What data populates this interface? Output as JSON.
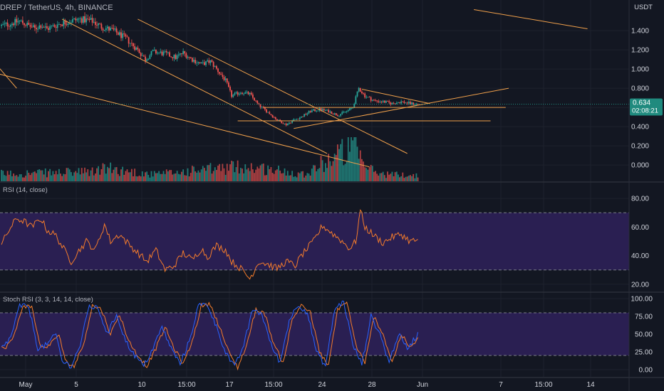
{
  "header": {
    "symbol_line": "DREP / TetherUS, 4h, BINANCE",
    "price_unit": "USDT",
    "last_price": "0.634",
    "countdown": "02:08:21"
  },
  "indicators": {
    "rsi_label": "RSI (14, close)",
    "stoch_label": "Stoch RSI (3, 3, 14, 14, close)"
  },
  "colors": {
    "background": "#131722",
    "up": "#26a69a",
    "down": "#ef5350",
    "trendline": "#f0a04b",
    "rsi_line": "#f57c2b",
    "rsi_band": "#2a1f52",
    "stoch_k": "#2962ff",
    "stoch_d": "#f57c2b",
    "price_tag": "#1f8a7e"
  },
  "chart_data": [
    {
      "type": "candlestick",
      "interval": "4h",
      "title": "DREP / TetherUS, 4h, BINANCE",
      "y_ticks": [
        0.0,
        0.2,
        0.4,
        0.6,
        0.8,
        1.0,
        1.2,
        1.4
      ],
      "y_tick_labels": [
        "0.000",
        "0.200",
        "0.400",
        "0.600",
        "0.800",
        "1.000",
        "1.200",
        "1.400"
      ],
      "x_tick_labels": [
        "May",
        "5",
        "10",
        "15:00",
        "17",
        "15:00",
        "24",
        "28",
        "Jun",
        "7",
        "15:00",
        "14"
      ],
      "last_price": 0.634,
      "price_keypoints": [
        [
          0,
          1.45
        ],
        [
          12,
          1.5
        ],
        [
          22,
          1.42
        ],
        [
          26,
          1.46
        ],
        [
          30,
          1.42
        ],
        [
          38,
          1.47
        ],
        [
          45,
          1.5
        ],
        [
          52,
          1.52
        ],
        [
          60,
          1.5
        ],
        [
          66,
          1.44
        ],
        [
          74,
          1.4
        ],
        [
          82,
          1.32
        ],
        [
          90,
          1.2
        ],
        [
          95,
          1.1
        ],
        [
          100,
          1.18
        ],
        [
          108,
          1.16
        ],
        [
          115,
          1.12
        ],
        [
          120,
          1.17
        ],
        [
          126,
          1.1
        ],
        [
          132,
          1.05
        ],
        [
          138,
          1.08
        ],
        [
          142,
          1.0
        ],
        [
          148,
          0.88
        ],
        [
          152,
          0.72
        ],
        [
          158,
          0.76
        ],
        [
          164,
          0.74
        ],
        [
          170,
          0.62
        ],
        [
          176,
          0.55
        ],
        [
          182,
          0.47
        ],
        [
          188,
          0.42
        ],
        [
          193,
          0.47
        ],
        [
          198,
          0.5
        ],
        [
          204,
          0.56
        ],
        [
          210,
          0.58
        ],
        [
          216,
          0.56
        ],
        [
          222,
          0.52
        ],
        [
          228,
          0.56
        ],
        [
          232,
          0.6
        ],
        [
          236,
          0.8
        ],
        [
          240,
          0.72
        ],
        [
          246,
          0.67
        ],
        [
          252,
          0.66
        ],
        [
          258,
          0.64
        ],
        [
          264,
          0.66
        ],
        [
          270,
          0.64
        ],
        [
          275,
          0.634
        ]
      ],
      "volume_keypoints": [
        [
          0,
          0.2
        ],
        [
          60,
          0.25
        ],
        [
          68,
          0.35
        ],
        [
          100,
          0.18
        ],
        [
          160,
          0.4
        ],
        [
          180,
          0.3
        ],
        [
          200,
          0.2
        ],
        [
          234,
          1.0
        ],
        [
          236,
          0.6
        ],
        [
          240,
          0.4
        ],
        [
          250,
          0.2
        ],
        [
          275,
          0.15
        ]
      ],
      "trendlines": [
        {
          "from": [
            -2,
            1.02
          ],
          "to": [
            10,
            0.8
          ]
        },
        {
          "from": [
            -2,
            0.95
          ],
          "to": [
            243,
            -0.02
          ]
        },
        {
          "from": [
            40,
            1.52
          ],
          "to": [
            215,
            0.12
          ]
        },
        {
          "from": [
            90,
            1.52
          ],
          "to": [
            268,
            0.12
          ]
        },
        {
          "from": [
            156,
            0.46
          ],
          "to": [
            323,
            0.46
          ]
        },
        {
          "from": [
            173,
            0.6
          ],
          "to": [
            333,
            0.6
          ]
        },
        {
          "from": [
            193,
            0.38
          ],
          "to": [
            335,
            0.8
          ]
        },
        {
          "from": [
            238,
            0.79
          ],
          "to": [
            283,
            0.64
          ]
        },
        {
          "from": [
            312,
            1.62
          ],
          "to": [
            387,
            1.42
          ]
        }
      ]
    },
    {
      "type": "line",
      "name": "RSI (14, close)",
      "y_ticks": [
        20,
        40,
        60,
        80
      ],
      "y_tick_labels": [
        "20.00",
        "40.00",
        "60.00",
        "80.00"
      ],
      "band": [
        30,
        70
      ],
      "keypoints": [
        [
          0,
          48
        ],
        [
          5,
          58
        ],
        [
          10,
          66
        ],
        [
          15,
          64
        ],
        [
          20,
          60
        ],
        [
          26,
          66
        ],
        [
          30,
          58
        ],
        [
          36,
          54
        ],
        [
          42,
          43
        ],
        [
          46,
          36
        ],
        [
          50,
          42
        ],
        [
          56,
          50
        ],
        [
          62,
          44
        ],
        [
          68,
          62
        ],
        [
          72,
          50
        ],
        [
          78,
          55
        ],
        [
          84,
          48
        ],
        [
          90,
          42
        ],
        [
          96,
          36
        ],
        [
          102,
          44
        ],
        [
          108,
          30
        ],
        [
          114,
          33
        ],
        [
          120,
          42
        ],
        [
          126,
          37
        ],
        [
          132,
          45
        ],
        [
          136,
          39
        ],
        [
          142,
          47
        ],
        [
          148,
          44
        ],
        [
          152,
          36
        ],
        [
          158,
          31
        ],
        [
          164,
          24
        ],
        [
          170,
          36
        ],
        [
          176,
          34
        ],
        [
          182,
          31
        ],
        [
          188,
          36
        ],
        [
          194,
          33
        ],
        [
          198,
          40
        ],
        [
          206,
          50
        ],
        [
          212,
          61
        ],
        [
          218,
          56
        ],
        [
          224,
          51
        ],
        [
          230,
          45
        ],
        [
          234,
          50
        ],
        [
          237,
          72
        ],
        [
          240,
          60
        ],
        [
          246,
          54
        ],
        [
          252,
          49
        ],
        [
          258,
          53
        ],
        [
          264,
          55
        ],
        [
          270,
          50
        ],
        [
          275,
          51
        ]
      ]
    },
    {
      "type": "line",
      "name": "Stoch RSI (3, 3, 14, 14, close)",
      "y_ticks": [
        0,
        25,
        50,
        75,
        100
      ],
      "y_tick_labels": [
        "0.00",
        "25.00",
        "50.00",
        "75.00",
        "100.00"
      ],
      "band": [
        20,
        80
      ],
      "keypoints": [
        [
          0,
          30
        ],
        [
          6,
          45
        ],
        [
          12,
          90
        ],
        [
          18,
          88
        ],
        [
          24,
          30
        ],
        [
          30,
          35
        ],
        [
          36,
          50
        ],
        [
          40,
          12
        ],
        [
          46,
          5
        ],
        [
          52,
          35
        ],
        [
          58,
          90
        ],
        [
          64,
          85
        ],
        [
          70,
          50
        ],
        [
          76,
          78
        ],
        [
          82,
          40
        ],
        [
          88,
          20
        ],
        [
          94,
          5
        ],
        [
          100,
          30
        ],
        [
          106,
          60
        ],
        [
          112,
          30
        ],
        [
          118,
          8
        ],
        [
          124,
          40
        ],
        [
          130,
          90
        ],
        [
          136,
          92
        ],
        [
          142,
          60
        ],
        [
          148,
          25
        ],
        [
          154,
          3
        ],
        [
          160,
          35
        ],
        [
          166,
          85
        ],
        [
          172,
          78
        ],
        [
          178,
          35
        ],
        [
          184,
          10
        ],
        [
          190,
          70
        ],
        [
          196,
          92
        ],
        [
          202,
          80
        ],
        [
          208,
          25
        ],
        [
          214,
          5
        ],
        [
          220,
          85
        ],
        [
          226,
          96
        ],
        [
          232,
          35
        ],
        [
          238,
          8
        ],
        [
          244,
          75
        ],
        [
          250,
          50
        ],
        [
          256,
          10
        ],
        [
          262,
          50
        ],
        [
          268,
          30
        ],
        [
          275,
          50
        ]
      ]
    }
  ]
}
